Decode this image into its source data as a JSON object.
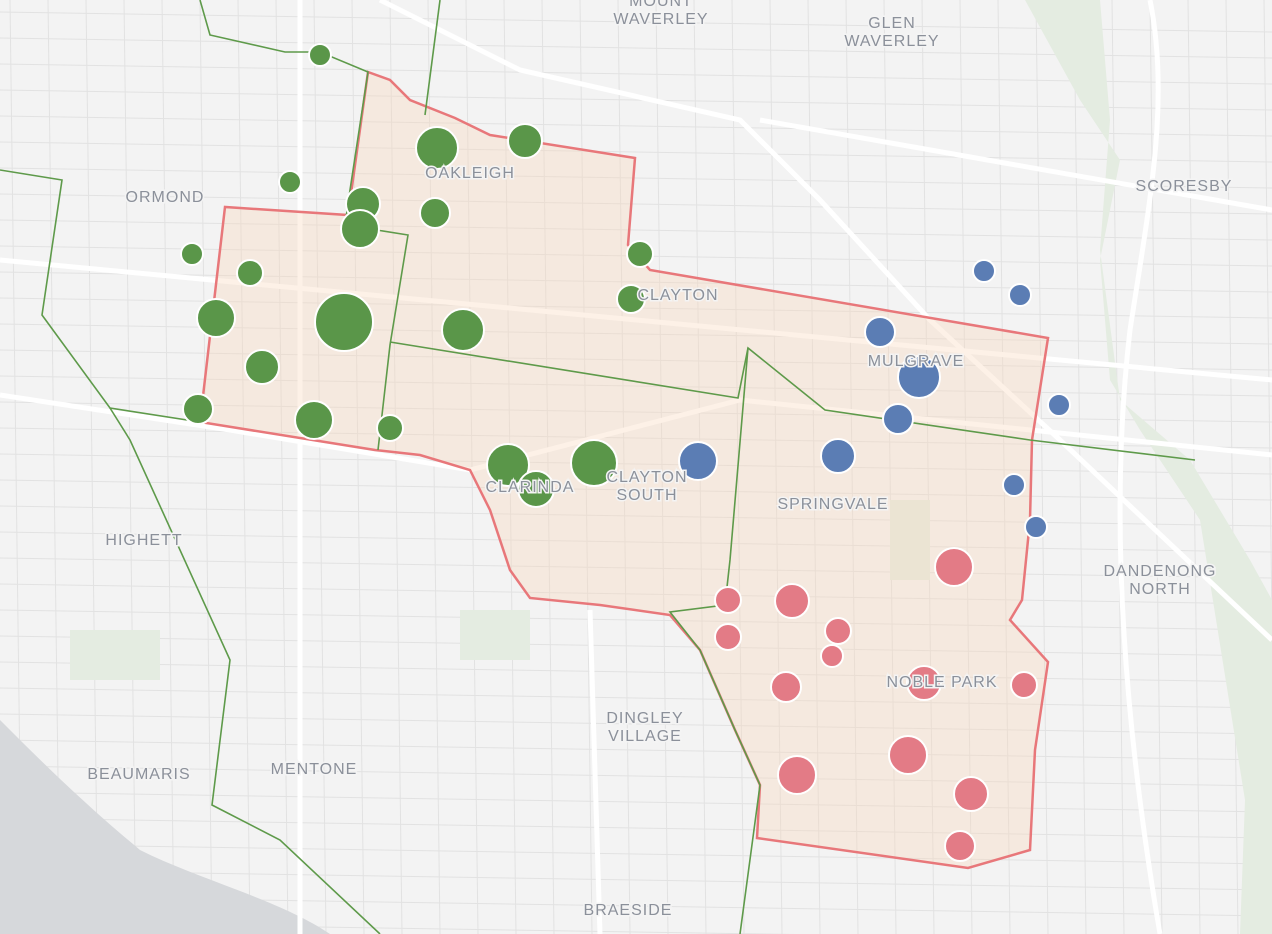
{
  "places": [
    {
      "lines": [
        "MOUNT",
        "WAVERLEY"
      ]
    },
    {
      "lines": [
        "GLEN",
        "WAVERLEY"
      ]
    },
    {
      "lines": [
        "ORMOND"
      ]
    },
    {
      "lines": [
        "OAKLEIGH"
      ]
    },
    {
      "lines": [
        "CLAYTON"
      ]
    },
    {
      "lines": [
        "SCORESBY"
      ]
    },
    {
      "lines": [
        "MULGRAVE"
      ]
    },
    {
      "lines": [
        "CLARINDA"
      ]
    },
    {
      "lines": [
        "CLAYTON",
        "SOUTH"
      ]
    },
    {
      "lines": [
        "SPRINGVALE"
      ]
    },
    {
      "lines": [
        "HIGHETT"
      ]
    },
    {
      "lines": [
        "DANDENONG",
        "NORTH"
      ]
    },
    {
      "lines": [
        "NOBLE PARK"
      ]
    },
    {
      "lines": [
        "DINGLEY",
        "VILLAGE"
      ]
    },
    {
      "lines": [
        "BEAUMARIS"
      ]
    },
    {
      "lines": [
        "MENTONE"
      ]
    },
    {
      "lines": [
        "BRAESIDE"
      ]
    }
  ]
}
